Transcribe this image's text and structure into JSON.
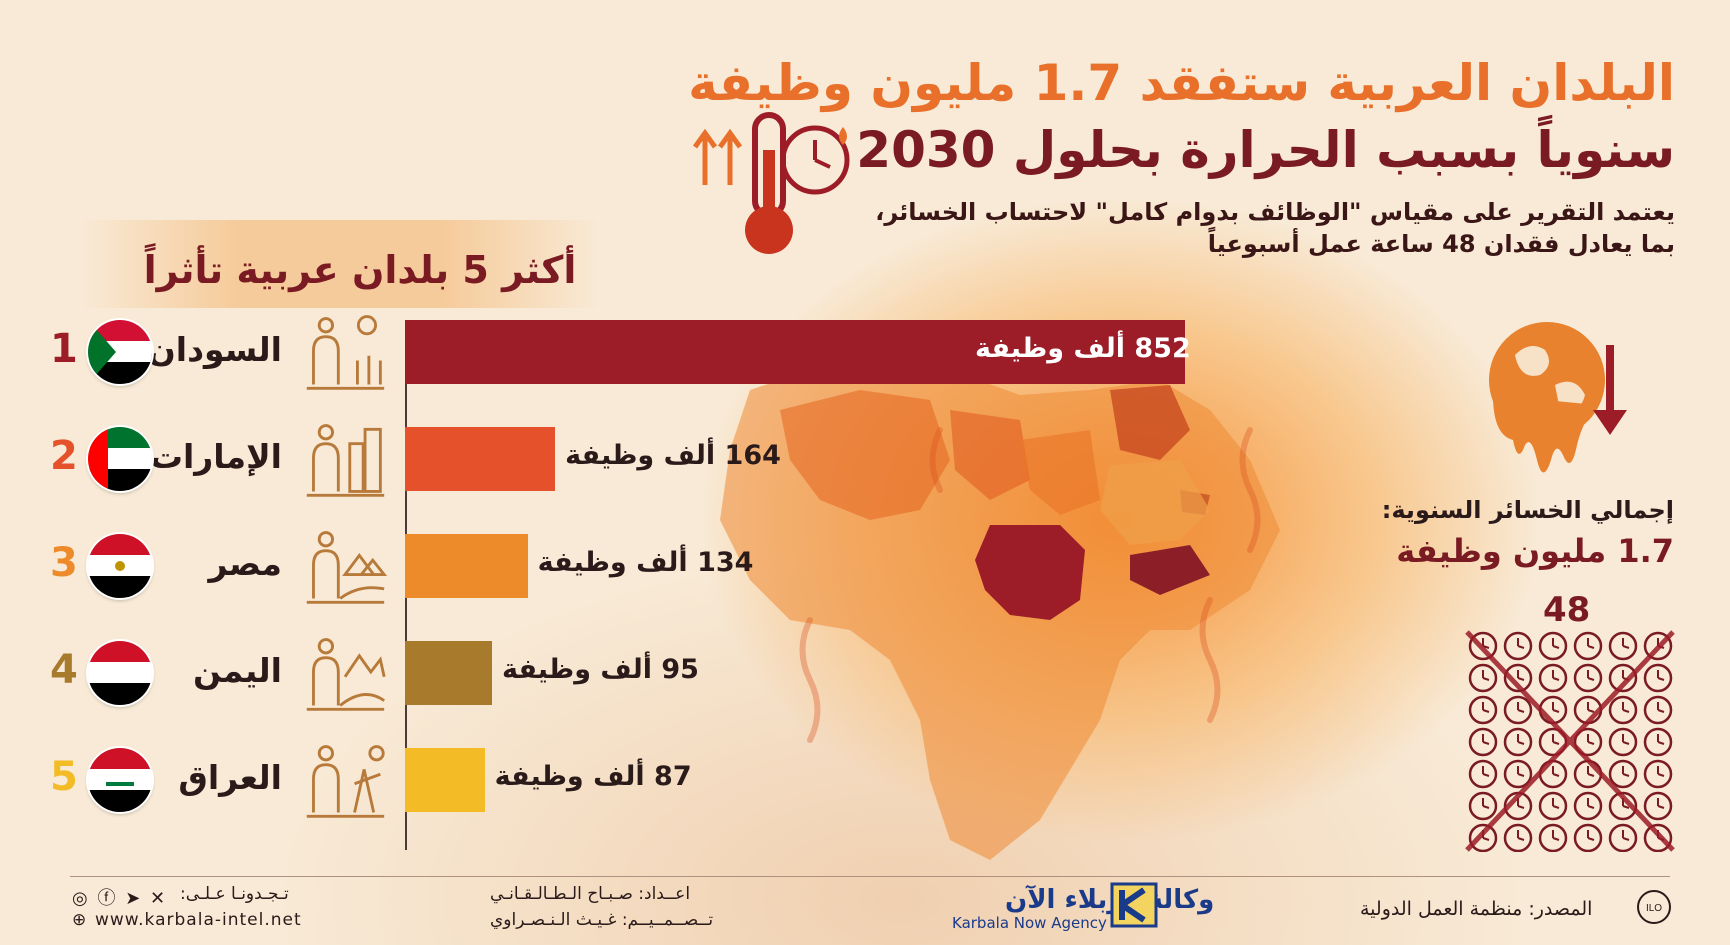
{
  "title": {
    "line1": "البلدان العربية ستفقد 1.7 مليون وظيفة",
    "line2": "سنوياً بسبب الحرارة بحلول 2030"
  },
  "subtitle": {
    "line1": "يعتمد التقرير على مقياس \"الوظائف بدوام كامل\" لاحتساب الخسائر،",
    "line2": "بما يعادل فقدان 48 ساعة عمل أسبوعياً"
  },
  "section_title": "أكثر 5 بلدان عربية تأثراً",
  "chart_data": {
    "type": "bar",
    "orientation": "horizontal",
    "categories": [
      "السودان",
      "الإمارات",
      "مصر",
      "اليمن",
      "العراق"
    ],
    "ranks": [
      "1",
      "2",
      "3",
      "4",
      "5"
    ],
    "values": [
      852,
      164,
      134,
      95,
      87
    ],
    "labels": [
      "852 ألف وظيفة",
      "164 ألف وظيفة",
      "134 ألف وظيفة",
      "95 ألف وظيفة",
      "87 ألف وظيفة"
    ],
    "colors": [
      "#9c1c27",
      "#e5512a",
      "#ed8a2a",
      "#a87a2c",
      "#f3bb25"
    ],
    "rank_colors": [
      "#9c1c27",
      "#e5512a",
      "#ed8a2a",
      "#a87a2c",
      "#f3bb25"
    ],
    "unit": "ألف وظيفة",
    "xlim": [
      0,
      852
    ],
    "grid": false
  },
  "flags": [
    "sudan-flag",
    "uae-flag",
    "egypt-flag",
    "yemen-flag",
    "iraq-flag"
  ],
  "sector_icons": [
    "farmer-icon",
    "construction-worker-icon",
    "farmer-pyramids-icon",
    "laborer-mountains-icon",
    "oil-worker-icon"
  ],
  "total": {
    "label": "إجمالي الخسائر السنوية:",
    "value": "1.7 مليون وظيفة"
  },
  "hours": "48",
  "footer": {
    "follow": "تـجـدونـا عـلـى:",
    "website": "www.karbala-intel.net",
    "prepared_by": "اعــداد: صـبـاح الـطـالـقـانـي",
    "design_by": "تــصــمــيــم: غـيـث الـنـصـراوي",
    "brand_ar": "وكالة كربلاء الآن",
    "brand_en": "Karbala Now Agency",
    "source": "المصدر: منظمة العمل الدولية"
  },
  "colors": {
    "accent_orange": "#e8702a",
    "dark_red": "#7a1a22",
    "background": "#f8ead6"
  }
}
